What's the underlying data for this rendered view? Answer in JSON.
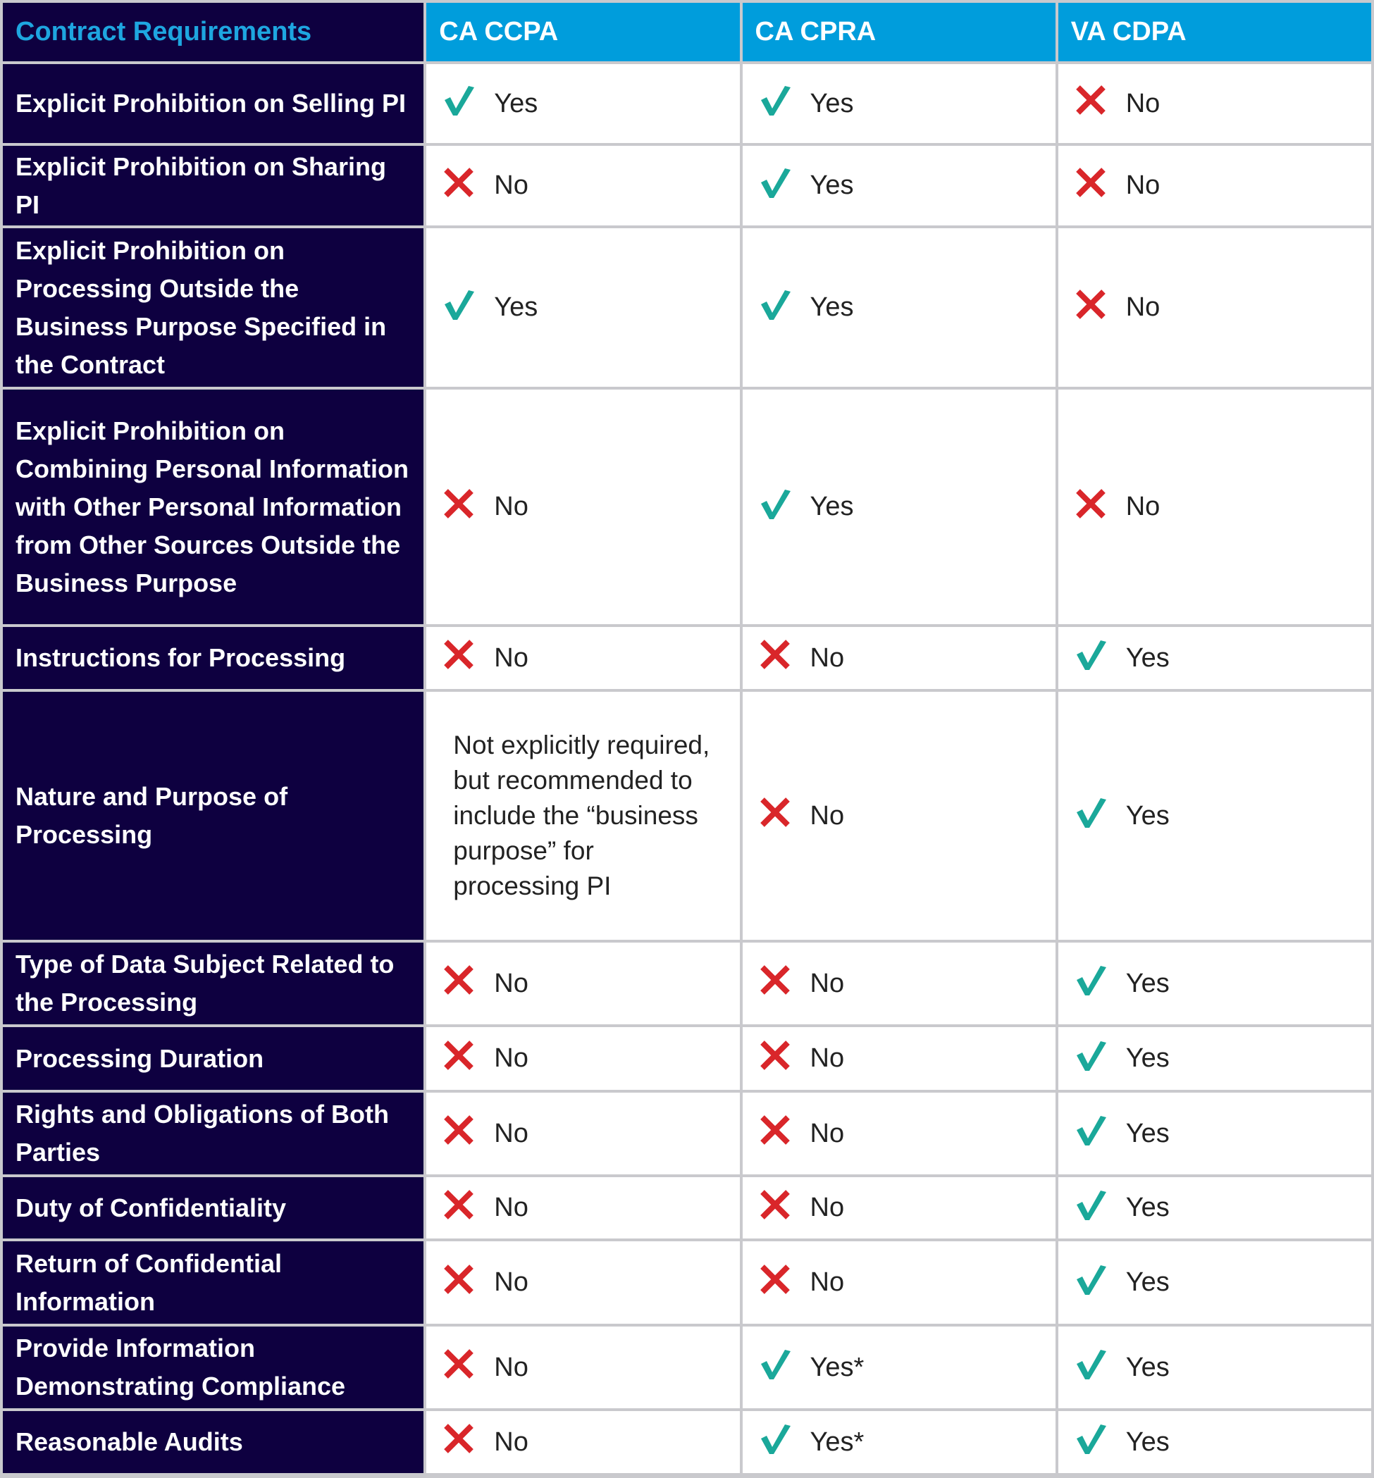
{
  "colors": {
    "header_dark": "#0e0040",
    "header_blue": "#009ddc",
    "check": "#1aa89a",
    "cross": "#d9262a",
    "grid": "#c9c9cd"
  },
  "header": {
    "requirements": "Contract Requirements",
    "columns": [
      "CA CCPA",
      "CA CPRA",
      "VA CDPA"
    ]
  },
  "rows": [
    {
      "label": "Explicit Prohibition on Selling PI",
      "values": [
        {
          "icon": "check",
          "text": "Yes"
        },
        {
          "icon": "check",
          "text": "Yes"
        },
        {
          "icon": "cross",
          "text": "No"
        }
      ]
    },
    {
      "label": "Explicit Prohibition on Sharing PI",
      "values": [
        {
          "icon": "cross",
          "text": "No"
        },
        {
          "icon": "check",
          "text": "Yes"
        },
        {
          "icon": "cross",
          "text": "No"
        }
      ]
    },
    {
      "label": "Explicit Prohibition on Processing Outside the Business Purpose Specified in the Contract",
      "values": [
        {
          "icon": "check",
          "text": "Yes"
        },
        {
          "icon": "check",
          "text": "Yes"
        },
        {
          "icon": "cross",
          "text": "No"
        }
      ]
    },
    {
      "label": "Explicit Prohibition on Combining Personal Information with Other Personal Information from Other Sources Outside the Business Purpose",
      "values": [
        {
          "icon": "cross",
          "text": "No"
        },
        {
          "icon": "check",
          "text": "Yes"
        },
        {
          "icon": "cross",
          "text": "No"
        }
      ]
    },
    {
      "label": "Instructions for Processing",
      "values": [
        {
          "icon": "cross",
          "text": "No"
        },
        {
          "icon": "cross",
          "text": "No"
        },
        {
          "icon": "check",
          "text": "Yes"
        }
      ]
    },
    {
      "label": "Nature and Purpose of Processing",
      "values": [
        {
          "icon": "none",
          "text": "Not explicitly required, but recommended to include the “business purpose” for processing PI"
        },
        {
          "icon": "cross",
          "text": "No"
        },
        {
          "icon": "check",
          "text": "Yes"
        }
      ]
    },
    {
      "label": "Type of Data Subject Related to the Processing",
      "values": [
        {
          "icon": "cross",
          "text": "No"
        },
        {
          "icon": "cross",
          "text": "No"
        },
        {
          "icon": "check",
          "text": "Yes"
        }
      ]
    },
    {
      "label": "Processing Duration",
      "values": [
        {
          "icon": "cross",
          "text": "No"
        },
        {
          "icon": "cross",
          "text": "No"
        },
        {
          "icon": "check",
          "text": "Yes"
        }
      ]
    },
    {
      "label": "Rights and Obligations of Both Parties",
      "values": [
        {
          "icon": "cross",
          "text": "No"
        },
        {
          "icon": "cross",
          "text": "No"
        },
        {
          "icon": "check",
          "text": "Yes"
        }
      ]
    },
    {
      "label": "Duty of Confidentiality",
      "values": [
        {
          "icon": "cross",
          "text": "No"
        },
        {
          "icon": "cross",
          "text": "No"
        },
        {
          "icon": "check",
          "text": "Yes"
        }
      ]
    },
    {
      "label": "Return of Confidential Information",
      "values": [
        {
          "icon": "cross",
          "text": "No"
        },
        {
          "icon": "cross",
          "text": "No"
        },
        {
          "icon": "check",
          "text": "Yes"
        }
      ]
    },
    {
      "label": "Provide Information Demonstrating Compliance",
      "values": [
        {
          "icon": "cross",
          "text": "No"
        },
        {
          "icon": "check",
          "text": "Yes*"
        },
        {
          "icon": "check",
          "text": "Yes"
        }
      ]
    },
    {
      "label": "Reasonable Audits",
      "values": [
        {
          "icon": "cross",
          "text": "No"
        },
        {
          "icon": "check",
          "text": "Yes*"
        },
        {
          "icon": "check",
          "text": "Yes"
        }
      ]
    }
  ]
}
